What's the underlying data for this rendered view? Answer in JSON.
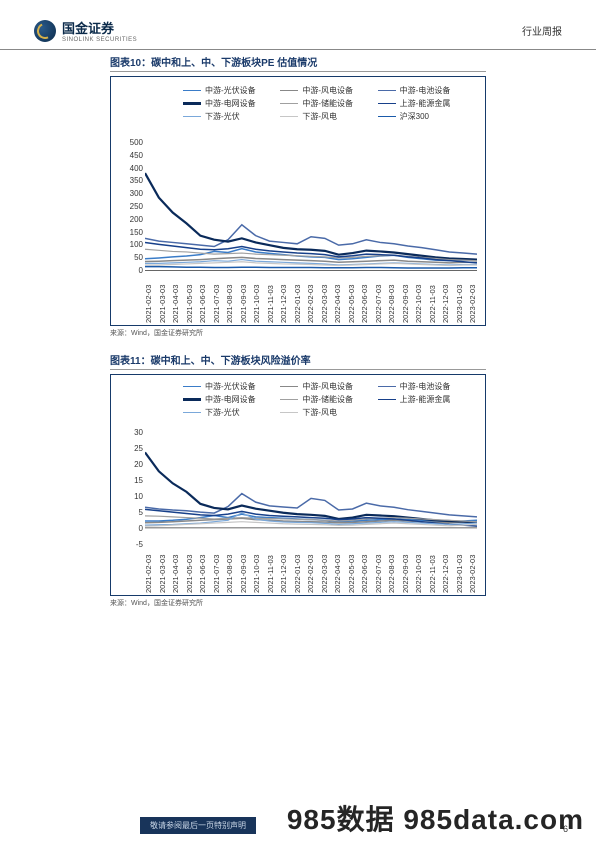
{
  "header": {
    "logo_text": "国金证券",
    "logo_sub": "SINOLINK SECURITIES",
    "right": "行业周报"
  },
  "charts": [
    {
      "title": "图表10：碳中和上、中、下游板块PE 估值情况",
      "source": "来源：Wind，国金证券研究所",
      "ylim": [
        0,
        500
      ],
      "ytick_step": 50,
      "yticks": [
        "500",
        "450",
        "400",
        "350",
        "300",
        "250",
        "200",
        "150",
        "100",
        "50",
        "0"
      ],
      "xticks": [
        "2021-02-03",
        "2021-03-03",
        "2021-04-03",
        "2021-05-03",
        "2021-06-03",
        "2021-07-03",
        "2021-08-03",
        "2021-09-03",
        "2021-10-03",
        "2021-11-03",
        "2021-12-03",
        "2022-01-03",
        "2022-02-03",
        "2022-03-03",
        "2022-04-03",
        "2022-05-03",
        "2022-06-03",
        "2022-07-03",
        "2022-08-03",
        "2022-09-03",
        "2022-10-03",
        "2022-11-03",
        "2022-12-03",
        "2023-01-03",
        "2023-02-03"
      ],
      "series": [
        {
          "label": "中游-光伏设备",
          "color": "#3a7cc8",
          "width": 1.5,
          "data": [
            45,
            48,
            52,
            55,
            60,
            72,
            68,
            82,
            70,
            65,
            60,
            55,
            52,
            50,
            42,
            45,
            50,
            55,
            58,
            50,
            45,
            40,
            38,
            40,
            42
          ]
        },
        {
          "label": "中游-风电设备",
          "color": "#888888",
          "width": 1.5,
          "data": [
            35,
            36,
            38,
            40,
            42,
            45,
            48,
            50,
            46,
            44,
            42,
            40,
            38,
            36,
            32,
            34,
            36,
            38,
            40,
            36,
            34,
            32,
            30,
            32,
            32
          ]
        },
        {
          "label": "中游-电池设备",
          "color": "#4a6aa8",
          "width": 1.5,
          "data": [
            120,
            110,
            105,
            100,
            95,
            90,
            115,
            170,
            130,
            110,
            105,
            100,
            126,
            120,
            95,
            100,
            115,
            105,
            100,
            92,
            86,
            78,
            70,
            66,
            62
          ]
        },
        {
          "label": "中游-电网设备",
          "color": "#0a2a5a",
          "width": 2.2,
          "data": [
            360,
            270,
            215,
            175,
            130,
            115,
            108,
            120,
            105,
            95,
            85,
            80,
            78,
            74,
            60,
            66,
            75,
            72,
            68,
            62,
            56,
            50,
            46,
            44,
            42
          ]
        },
        {
          "label": "中游-储能设备",
          "color": "#a0a0a0",
          "width": 1.2,
          "data": [
            80,
            76,
            72,
            70,
            66,
            62,
            64,
            66,
            62,
            60,
            58,
            56,
            54,
            52,
            48,
            50,
            54,
            56,
            58,
            54,
            50,
            46,
            42,
            40,
            38
          ]
        },
        {
          "label": "上游-能源金属",
          "color": "#17408a",
          "width": 1.5,
          "data": [
            105,
            98,
            92,
            86,
            80,
            78,
            82,
            90,
            80,
            74,
            70,
            66,
            64,
            60,
            52,
            56,
            62,
            60,
            58,
            52,
            48,
            42,
            38,
            34,
            30
          ]
        },
        {
          "label": "下游-光伏",
          "color": "#7aa8da",
          "width": 1.2,
          "data": [
            28,
            28,
            30,
            32,
            34,
            38,
            36,
            42,
            36,
            34,
            32,
            30,
            28,
            26,
            22,
            24,
            26,
            28,
            30,
            28,
            26,
            24,
            22,
            24,
            24
          ]
        },
        {
          "label": "下游-风电",
          "color": "#c6c6c6",
          "width": 1.2,
          "data": [
            22,
            22,
            24,
            26,
            28,
            30,
            32,
            34,
            30,
            28,
            26,
            25,
            24,
            22,
            20,
            22,
            24,
            26,
            28,
            26,
            24,
            22,
            20,
            22,
            22
          ]
        },
        {
          "label": "沪深300",
          "color": "#1a5aaa",
          "width": 1.5,
          "data": [
            16,
            16,
            15,
            14,
            14,
            13,
            13,
            14,
            14,
            13,
            13,
            13,
            13,
            12,
            12,
            12,
            13,
            13,
            12,
            11,
            11,
            11,
            11,
            12,
            12
          ]
        }
      ]
    },
    {
      "title": "图表11：碳中和上、中、下游板块风险溢价率",
      "source": "来源：Wind，国金证券研究所",
      "ylim": [
        -5,
        30
      ],
      "ytick_step": 5,
      "yticks": [
        "30",
        "25",
        "20",
        "15",
        "10",
        "5",
        "0",
        "-5"
      ],
      "xticks": [
        "2021-02-03",
        "2021-03-03",
        "2021-04-03",
        "2021-05-03",
        "2021-06-03",
        "2021-07-03",
        "2021-08-03",
        "2021-09-03",
        "2021-10-03",
        "2021-11-03",
        "2021-12-03",
        "2022-01-03",
        "2022-02-03",
        "2022-03-03",
        "2022-04-03",
        "2022-05-03",
        "2022-06-03",
        "2022-07-03",
        "2022-08-03",
        "2022-09-03",
        "2022-10-03",
        "2022-11-03",
        "2022-12-03",
        "2023-01-03",
        "2023-02-03"
      ],
      "series": [
        {
          "label": "中游-光伏设备",
          "color": "#3a7cc8",
          "width": 1.5,
          "data": [
            2,
            2,
            2.2,
            2.5,
            3,
            3.6,
            3,
            4,
            3.2,
            3,
            2.8,
            2.6,
            2.4,
            2.2,
            1.8,
            2,
            2.2,
            2.4,
            2.6,
            2.4,
            2.2,
            2,
            1.8,
            2,
            2.2
          ]
        },
        {
          "label": "中游-风电设备",
          "color": "#888888",
          "width": 1.5,
          "data": [
            1.5,
            1.6,
            1.8,
            2,
            2.2,
            2.4,
            2.6,
            2.8,
            2.4,
            2.2,
            2,
            1.9,
            1.8,
            1.7,
            1.5,
            1.6,
            1.8,
            2,
            2.2,
            2,
            1.8,
            1.6,
            1.5,
            1.7,
            1.8
          ]
        },
        {
          "label": "中游-电池设备",
          "color": "#4a6aa8",
          "width": 1.5,
          "data": [
            6,
            5.5,
            5.2,
            5,
            4.6,
            4.3,
            6.2,
            10,
            7.5,
            6.4,
            6.1,
            5.8,
            8.6,
            8,
            5.2,
            5.5,
            7.2,
            6.4,
            6,
            5.3,
            4.8,
            4.3,
            3.8,
            3.5,
            3.2
          ]
        },
        {
          "label": "中游-电网设备",
          "color": "#0a2a5a",
          "width": 2.2,
          "data": [
            22,
            16.5,
            13,
            10.5,
            7,
            5.8,
            5.4,
            6.5,
            5.6,
            5,
            4.4,
            4,
            3.8,
            3.5,
            2.6,
            3,
            3.8,
            3.6,
            3.4,
            3,
            2.6,
            2.2,
            2,
            1.8,
            1.6
          ]
        },
        {
          "label": "中游-储能设备",
          "color": "#a0a0a0",
          "width": 1.2,
          "data": [
            3.5,
            3.4,
            3.2,
            3,
            2.8,
            2.6,
            2.8,
            3,
            2.8,
            2.7,
            2.6,
            2.5,
            2.4,
            2.2,
            2,
            2.2,
            2.6,
            2.8,
            3,
            2.8,
            2.6,
            2.4,
            2.2,
            2,
            1.8
          ]
        },
        {
          "label": "上游-能源金属",
          "color": "#17408a",
          "width": 1.5,
          "data": [
            5.4,
            5,
            4.6,
            4.2,
            3.8,
            3.6,
            4,
            4.8,
            4,
            3.6,
            3.4,
            3.2,
            3,
            2.8,
            2.4,
            2.6,
            3,
            2.8,
            2.6,
            2.2,
            1.8,
            1.4,
            1,
            0.8,
            0.5
          ]
        },
        {
          "label": "下游-光伏",
          "color": "#7aa8da",
          "width": 1.2,
          "data": [
            0.8,
            0.9,
            1,
            1.2,
            1.4,
            1.8,
            2.2,
            4.4,
            2.5,
            2,
            1.7,
            1.6,
            1.5,
            1.3,
            1,
            1.2,
            1.4,
            1.6,
            1.8,
            1.6,
            1.4,
            1.2,
            1,
            1.2,
            1.4
          ]
        },
        {
          "label": "下游-风电",
          "color": "#c6c6c6",
          "width": 1.2,
          "data": [
            0.5,
            0.6,
            0.8,
            1,
            1.2,
            1.4,
            1.6,
            1.8,
            1.6,
            1.4,
            1.2,
            1.1,
            1,
            0.9,
            0.7,
            0.8,
            1,
            1.2,
            1.4,
            1.2,
            1,
            0.8,
            0.6,
            0.8,
            1
          ]
        }
      ]
    }
  ],
  "footer": {
    "bar_text": "敬请参阅最后一页特别声明",
    "page": "6"
  },
  "watermark": "985数据 985data.com"
}
